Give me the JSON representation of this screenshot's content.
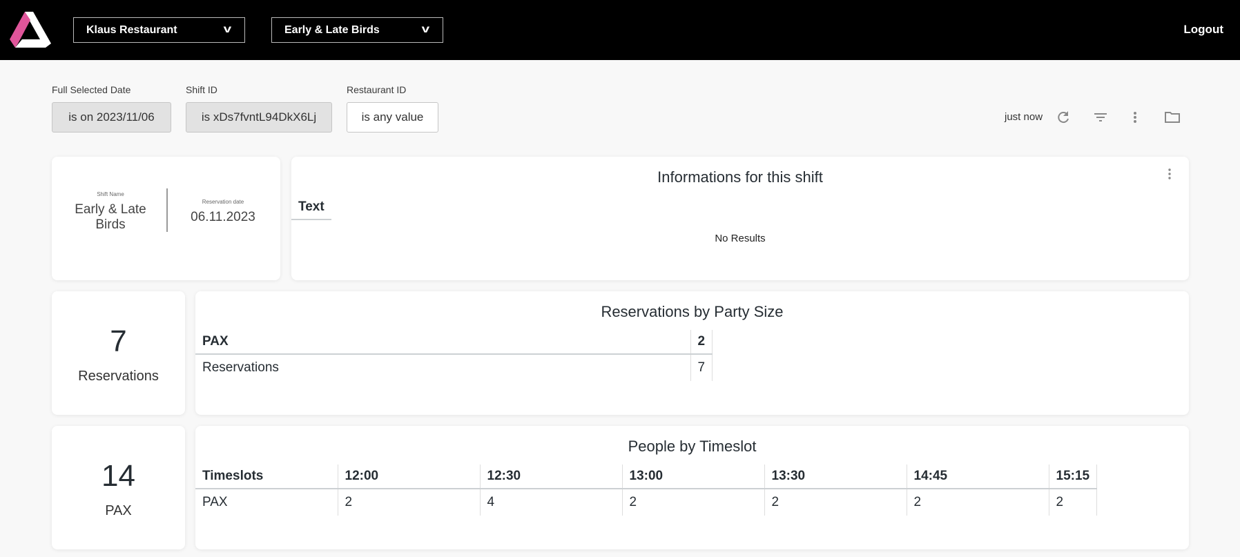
{
  "header": {
    "restaurant_select": "Klaus Restaurant",
    "shift_select": "Early & Late Birds",
    "logout": "Logout",
    "brand_color": "#e0559a"
  },
  "filters": [
    {
      "label": "Full Selected Date",
      "value": "is on 2023/11/06"
    },
    {
      "label": "Shift ID",
      "value": "is xDs7fvntL94DkX6Lj"
    },
    {
      "label": "Restaurant ID",
      "value": "is any value"
    }
  ],
  "toolbar": {
    "last_updated": "just now"
  },
  "shift_card": {
    "name_label": "Shift Name",
    "name": "Early & Late Birds",
    "date_label": "Reservation date",
    "date": "06.11.2023"
  },
  "info_card": {
    "title": "Informations for this shift",
    "column": "Text",
    "empty": "No Results"
  },
  "reservations_kpi": {
    "value": "7",
    "label": "Reservations"
  },
  "pax_kpi": {
    "value": "14",
    "label": "PAX"
  },
  "party_size": {
    "title": "Reservations by Party Size",
    "headers": [
      "PAX",
      "2"
    ],
    "row": [
      "Reservations",
      "7"
    ]
  },
  "timeslot": {
    "title": "People by Timeslot",
    "headers": [
      "Timeslots",
      "12:00",
      "12:30",
      "13:00",
      "13:30",
      "14:45",
      "15:15"
    ],
    "row": [
      "PAX",
      "2",
      "4",
      "2",
      "2",
      "2",
      "2"
    ]
  }
}
